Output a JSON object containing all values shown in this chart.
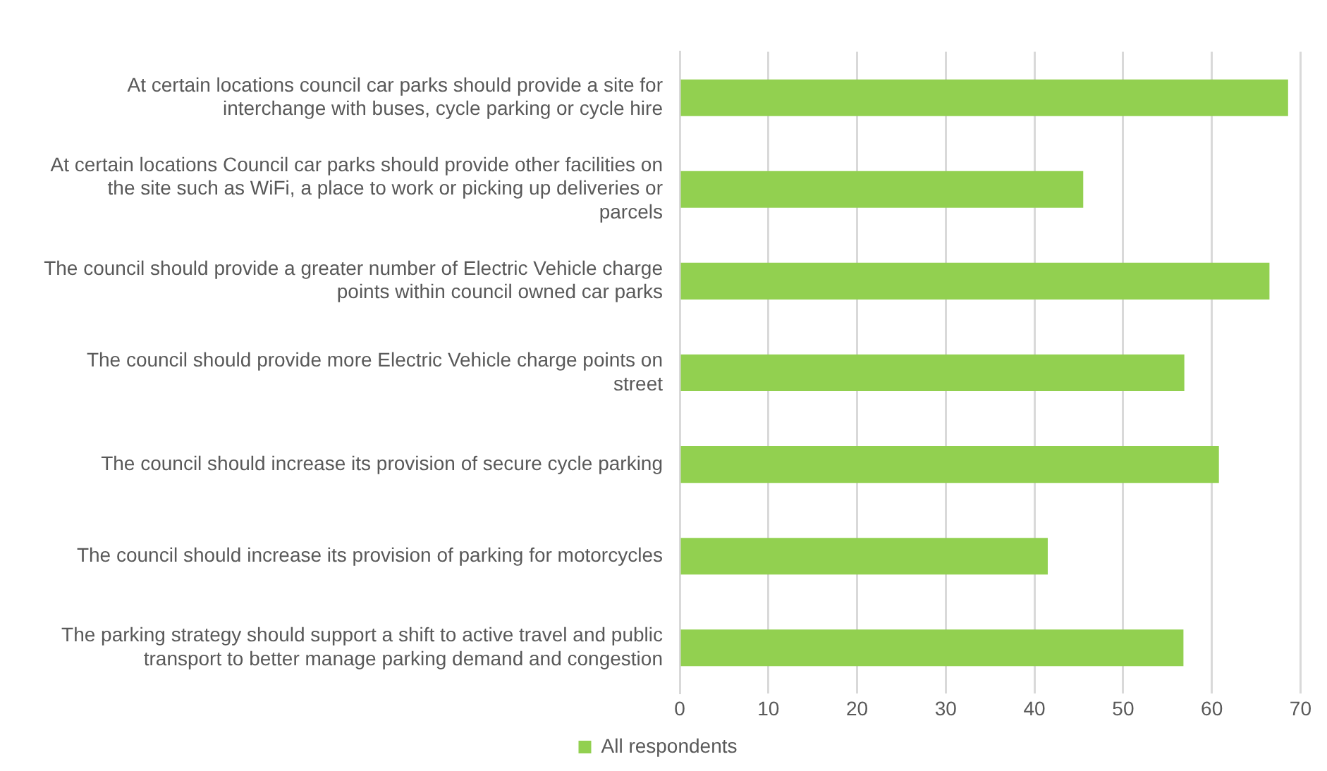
{
  "chart_data": {
    "type": "bar",
    "orientation": "horizontal",
    "categories": [
      "At certain locations council car parks should provide a site for interchange with buses, cycle parking or cycle hire",
      "At certain locations Council car parks should provide other facilities on the site such as WiFi, a place to work or picking up deliveries or parcels",
      "The council should provide a greater number of Electric Vehicle charge points within council owned car parks",
      "The council should provide more Electric Vehicle charge points on street",
      "The council should increase its provision of secure cycle parking",
      "The council should increase its provision of parking for motorcycles",
      "The parking strategy should support a shift to active travel and public transport to better manage parking demand and congestion"
    ],
    "series": [
      {
        "name": "All respondents",
        "color": "#92d050",
        "values": [
          68.6,
          45.5,
          66.5,
          56.9,
          60.8,
          41.5,
          56.8
        ]
      }
    ],
    "xlim": [
      0,
      70
    ],
    "xticks": [
      0,
      10,
      20,
      30,
      40,
      50,
      60,
      70
    ],
    "grid": "x",
    "legend": "bottom"
  }
}
